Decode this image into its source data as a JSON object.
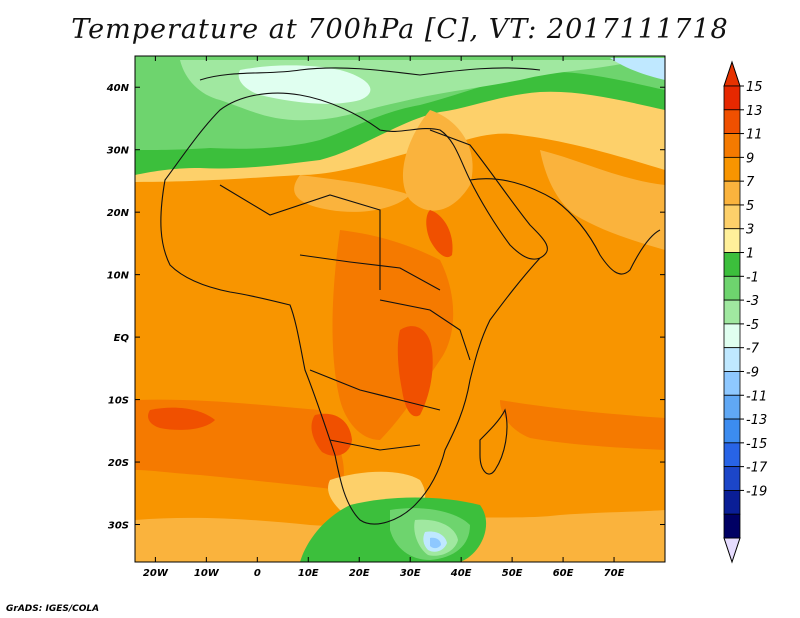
{
  "title": "Temperature at 700hPa [C], VT: 2017111718",
  "credit": "GrADS: IGES/COLA",
  "map": {
    "lon_range": [
      -24,
      80
    ],
    "lat_range": [
      -36,
      45
    ],
    "lon_ticks": [
      {
        "value": -20,
        "label": "20W"
      },
      {
        "value": -10,
        "label": "10W"
      },
      {
        "value": 0,
        "label": "0"
      },
      {
        "value": 10,
        "label": "10E"
      },
      {
        "value": 20,
        "label": "20E"
      },
      {
        "value": 30,
        "label": "30E"
      },
      {
        "value": 40,
        "label": "40E"
      },
      {
        "value": 50,
        "label": "50E"
      },
      {
        "value": 60,
        "label": "60E"
      },
      {
        "value": 70,
        "label": "70E"
      }
    ],
    "lat_ticks": [
      {
        "value": 40,
        "label": "40N"
      },
      {
        "value": 30,
        "label": "30N"
      },
      {
        "value": 20,
        "label": "20N"
      },
      {
        "value": 10,
        "label": "10N"
      },
      {
        "value": 0,
        "label": "EQ"
      },
      {
        "value": -10,
        "label": "10S"
      },
      {
        "value": -20,
        "label": "20S"
      },
      {
        "value": -30,
        "label": "30S"
      }
    ]
  },
  "colorbar": {
    "labels": [
      "15",
      "13",
      "11",
      "9",
      "7",
      "5",
      "3",
      "1",
      "-1",
      "-3",
      "-5",
      "-7",
      "-9",
      "-11",
      "-13",
      "-15",
      "-17",
      "-19"
    ],
    "colors": [
      "#e62800",
      "#f05000",
      "#f57a00",
      "#f89500",
      "#fab33d",
      "#fdd06a",
      "#fff09a",
      "#3cbf3c",
      "#6ed46e",
      "#a0e8a0",
      "#e0fff0",
      "#bfe8ff",
      "#8ec8ff",
      "#60a8f5",
      "#3c8cf0",
      "#2864e6",
      "#1c46c8",
      "#0a1e96",
      "#000064"
    ],
    "top_color": "#e63200",
    "bottom_color": "#e6dcff"
  }
}
